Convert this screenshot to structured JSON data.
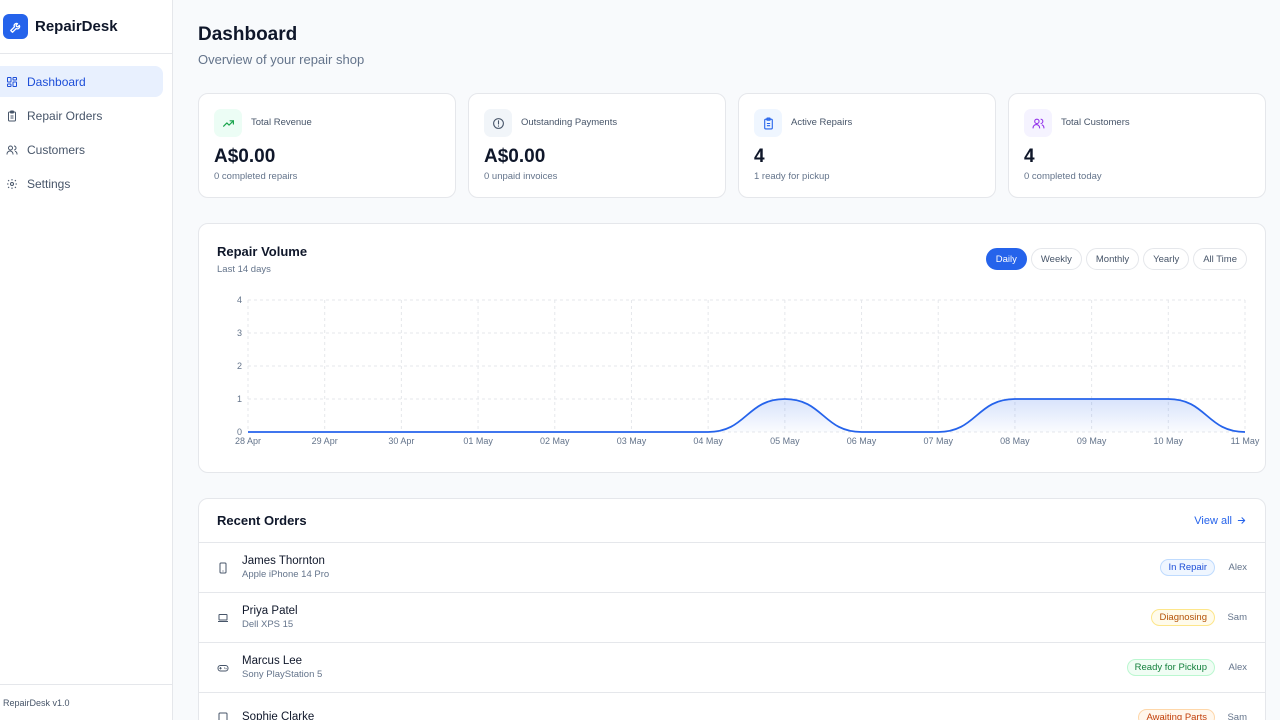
{
  "app": {
    "name": "RepairDesk",
    "version": "RepairDesk v1.0"
  },
  "nav": [
    {
      "label": "Dashboard",
      "icon": "grid-icon",
      "active": true
    },
    {
      "label": "Repair Orders",
      "icon": "clipboard-icon",
      "active": false
    },
    {
      "label": "Customers",
      "icon": "users-icon",
      "active": false
    },
    {
      "label": "Settings",
      "icon": "gear-icon",
      "active": false
    }
  ],
  "page": {
    "title": "Dashboard",
    "subtitle": "Overview of your repair shop"
  },
  "stats": [
    {
      "label": "Total Revenue",
      "value": "A$0.00",
      "sub": "0 completed repairs",
      "icon": "trending-up-icon",
      "color": "#16a34a",
      "bg": "#ecfdf5"
    },
    {
      "label": "Outstanding Payments",
      "value": "A$0.00",
      "sub": "0 unpaid invoices",
      "icon": "alert-circle-icon",
      "color": "#475569",
      "bg": "#f1f5f9"
    },
    {
      "label": "Active Repairs",
      "value": "4",
      "sub": "1 ready for pickup",
      "icon": "clipboard-icon",
      "color": "#2563eb",
      "bg": "#eff6ff"
    },
    {
      "label": "Total Customers",
      "value": "4",
      "sub": "0 completed today",
      "icon": "users-icon",
      "color": "#9333ea",
      "bg": "#f5f3ff"
    }
  ],
  "chart": {
    "title": "Repair Volume",
    "subtitle": "Last 14 days",
    "ranges": [
      "Daily",
      "Weekly",
      "Monthly",
      "Yearly",
      "All Time"
    ],
    "active_range": "Daily"
  },
  "chart_data": {
    "type": "area",
    "x": [
      "28 Apr",
      "29 Apr",
      "30 Apr",
      "01 May",
      "02 May",
      "03 May",
      "04 May",
      "05 May",
      "06 May",
      "07 May",
      "08 May",
      "09 May",
      "10 May",
      "11 May"
    ],
    "series": [
      {
        "values": [
          0,
          0,
          0,
          0,
          0,
          0,
          0,
          1,
          0,
          0,
          1,
          1,
          1,
          0
        ]
      }
    ],
    "ylim": [
      0,
      4
    ],
    "yticks": [
      0,
      1,
      2,
      3,
      4
    ],
    "grid": true,
    "color": "#2563eb"
  },
  "orders": {
    "title": "Recent Orders",
    "view_all": "View all",
    "rows": [
      {
        "name": "James Thornton",
        "device": "Apple iPhone 14 Pro",
        "icon": "smartphone-icon",
        "status": "In Repair",
        "tech": "Alex",
        "fg": "#1d4ed8",
        "bg": "#eff6ff",
        "border": "#bfdbfe"
      },
      {
        "name": "Priya Patel",
        "device": "Dell XPS 15",
        "icon": "laptop-icon",
        "status": "Diagnosing",
        "tech": "Sam",
        "fg": "#b45309",
        "bg": "#fffbeb",
        "border": "#fde68a"
      },
      {
        "name": "Marcus Lee",
        "device": "Sony PlayStation 5",
        "icon": "gamepad-icon",
        "status": "Ready for Pickup",
        "tech": "Alex",
        "fg": "#15803d",
        "bg": "#f0fdf4",
        "border": "#bbf7d0"
      },
      {
        "name": "Sophie Clarke",
        "device": "",
        "icon": "tablet-icon",
        "status": "Awaiting Parts",
        "tech": "Sam",
        "fg": "#c2410c",
        "bg": "#fff7ed",
        "border": "#fed7aa"
      }
    ]
  }
}
